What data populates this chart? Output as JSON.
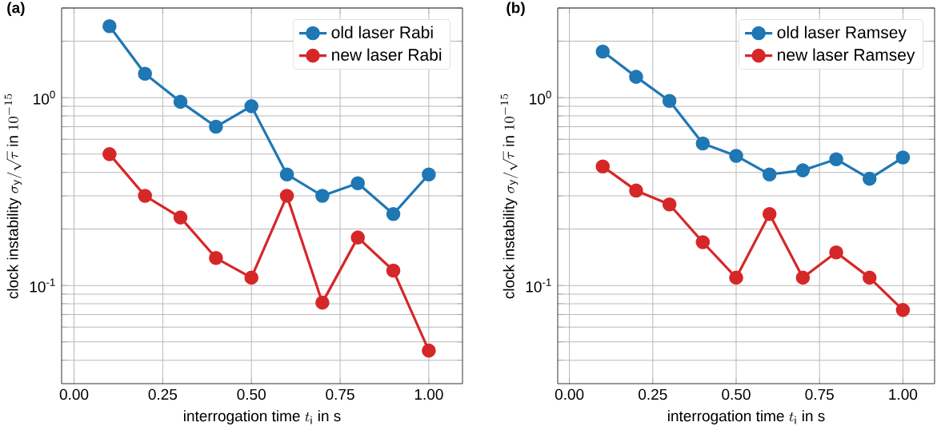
{
  "chart_data": [
    {
      "type": "line",
      "title": "(a)",
      "xlabel": "\\text{interrogation time } t_{\\mathrm{i}} \\text{ in s}",
      "ylabel": "\\text{clock instability } \\sigma_{\\mathrm{y}}/\\sqrt{\\tau} \\text{ in } 10^{-15}",
      "log": true,
      "grid": true,
      "legend": "top right",
      "marker": "circle",
      "xlim": [
        -0.035,
        1.095
      ],
      "ylim": [
        0.03,
        3
      ],
      "xticks": [
        {
          "value": 0,
          "label": "0.00"
        },
        {
          "value": 0.25,
          "label": "0.25"
        },
        {
          "value": 0.5,
          "label": "0.50"
        },
        {
          "value": 0.75,
          "label": "0.75"
        },
        {
          "value": 1,
          "label": "1.00"
        }
      ],
      "yticks": [
        {
          "value": 0.04,
          "label": null
        },
        {
          "value": 0.05,
          "label": null
        },
        {
          "value": 0.06,
          "label": null
        },
        {
          "value": 0.07,
          "label": null
        },
        {
          "value": 0.08,
          "label": null
        },
        {
          "value": 0.09,
          "label": null
        },
        {
          "value": 0.1,
          "label": "10$^{-1}$"
        },
        {
          "value": 0.2,
          "label": null
        },
        {
          "value": 0.3,
          "label": null
        },
        {
          "value": 0.4,
          "label": null
        },
        {
          "value": 0.5,
          "label": null
        },
        {
          "value": 0.6,
          "label": null
        },
        {
          "value": 0.7,
          "label": null
        },
        {
          "value": 0.8,
          "label": null
        },
        {
          "value": 0.9,
          "label": null
        },
        {
          "value": 1,
          "label": "10$^{0}$"
        },
        {
          "value": 2,
          "label": null
        },
        {
          "value": 3,
          "label": null
        }
      ],
      "x": [
        0.1,
        0.2,
        0.3,
        0.4,
        0.5,
        0.6,
        0.7,
        0.8,
        0.9,
        1.0
      ],
      "series": [
        {
          "name": "old laser Rabi",
          "color": "#1f77b4",
          "values": [
            2.4,
            1.34,
            0.95,
            0.7,
            0.9,
            0.39,
            0.3,
            0.35,
            0.24,
            0.39
          ]
        },
        {
          "name": "new laser Rabi",
          "color": "#d62728",
          "values": [
            0.5,
            0.3,
            0.23,
            0.14,
            0.11,
            0.3,
            0.081,
            0.18,
            0.12,
            0.045
          ]
        }
      ]
    },
    {
      "type": "line",
      "title": "(b)",
      "xlabel": "\\text{interrogation time } t_{\\mathrm{i}} \\text{ in s}",
      "ylabel": "\\text{clock instability } \\sigma_{\\mathrm{y}}/\\sqrt{\\tau} \\text{ in } 10^{-15}",
      "log": true,
      "grid": true,
      "legend": "top right",
      "marker": "circle",
      "xlim": [
        -0.035,
        1.095
      ],
      "ylim": [
        0.03,
        3
      ],
      "xticks": [
        {
          "value": 0,
          "label": "0.00"
        },
        {
          "value": 0.25,
          "label": "0.25"
        },
        {
          "value": 0.5,
          "label": "0.50"
        },
        {
          "value": 0.75,
          "label": "0.75"
        },
        {
          "value": 1,
          "label": "1.00"
        }
      ],
      "yticks": [
        {
          "value": 0.04,
          "label": null
        },
        {
          "value": 0.05,
          "label": null
        },
        {
          "value": 0.06,
          "label": null
        },
        {
          "value": 0.07,
          "label": null
        },
        {
          "value": 0.08,
          "label": null
        },
        {
          "value": 0.09,
          "label": null
        },
        {
          "value": 0.1,
          "label": "10$^{-1}$"
        },
        {
          "value": 0.2,
          "label": null
        },
        {
          "value": 0.3,
          "label": null
        },
        {
          "value": 0.4,
          "label": null
        },
        {
          "value": 0.5,
          "label": null
        },
        {
          "value": 0.6,
          "label": null
        },
        {
          "value": 0.7,
          "label": null
        },
        {
          "value": 0.8,
          "label": null
        },
        {
          "value": 0.9,
          "label": null
        },
        {
          "value": 1,
          "label": "10$^{0}$"
        },
        {
          "value": 2,
          "label": null
        },
        {
          "value": 3,
          "label": null
        }
      ],
      "x": [
        0.1,
        0.2,
        0.3,
        0.4,
        0.5,
        0.6,
        0.7,
        0.8,
        0.9,
        1.0
      ],
      "series": [
        {
          "name": "old laser Ramsey",
          "color": "#1f77b4",
          "values": [
            1.76,
            1.29,
            0.96,
            0.57,
            0.49,
            0.39,
            0.41,
            0.47,
            0.37,
            0.48
          ]
        },
        {
          "name": "new laser Ramsey",
          "color": "#d62728",
          "values": [
            0.43,
            0.32,
            0.27,
            0.17,
            0.11,
            0.24,
            0.11,
            0.15,
            0.11,
            0.074
          ]
        }
      ]
    }
  ]
}
